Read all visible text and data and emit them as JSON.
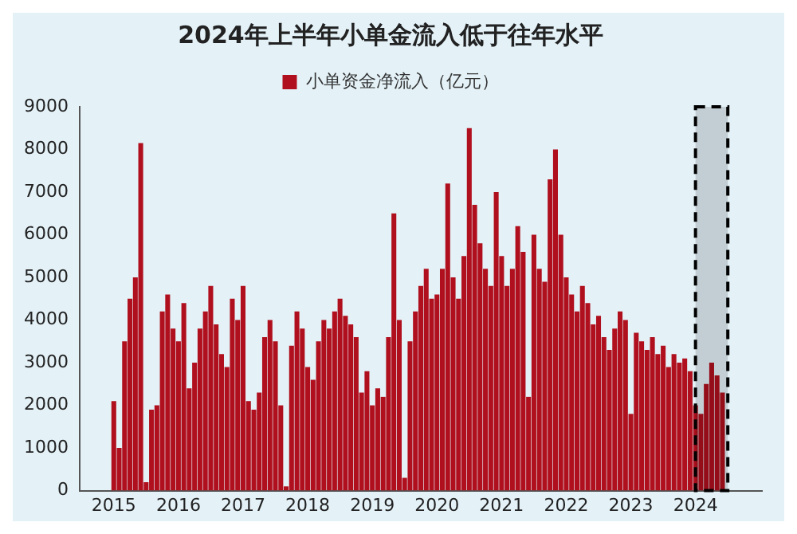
{
  "chart_data": {
    "type": "bar",
    "title": "2024年上半年小单金流入低于往年水平",
    "legend": "top",
    "x": [
      "2015-01",
      "2015-02",
      "2015-03",
      "2015-04",
      "2015-05",
      "2015-06",
      "2015-07",
      "2015-08",
      "2015-09",
      "2015-10",
      "2015-11",
      "2015-12",
      "2016-01",
      "2016-02",
      "2016-03",
      "2016-04",
      "2016-05",
      "2016-06",
      "2016-07",
      "2016-08",
      "2016-09",
      "2016-10",
      "2016-11",
      "2016-12",
      "2017-01",
      "2017-02",
      "2017-03",
      "2017-04",
      "2017-05",
      "2017-06",
      "2017-07",
      "2017-08",
      "2017-09",
      "2017-10",
      "2017-11",
      "2017-12",
      "2018-01",
      "2018-02",
      "2018-03",
      "2018-04",
      "2018-05",
      "2018-06",
      "2018-07",
      "2018-08",
      "2018-09",
      "2018-10",
      "2018-11",
      "2018-12",
      "2019-01",
      "2019-02",
      "2019-03",
      "2019-04",
      "2019-05",
      "2019-06",
      "2019-07",
      "2019-08",
      "2019-09",
      "2019-10",
      "2019-11",
      "2019-12",
      "2020-01",
      "2020-02",
      "2020-03",
      "2020-04",
      "2020-05",
      "2020-06",
      "2020-07",
      "2020-08",
      "2020-09",
      "2020-10",
      "2020-11",
      "2020-12",
      "2021-01",
      "2021-02",
      "2021-03",
      "2021-04",
      "2021-05",
      "2021-06",
      "2021-07",
      "2021-08",
      "2021-09",
      "2021-10",
      "2021-11",
      "2021-12",
      "2022-01",
      "2022-02",
      "2022-03",
      "2022-04",
      "2022-05",
      "2022-06",
      "2022-07",
      "2022-08",
      "2022-09",
      "2022-10",
      "2022-11",
      "2022-12",
      "2023-01",
      "2023-02",
      "2023-03",
      "2023-04",
      "2023-05",
      "2023-06",
      "2023-07",
      "2023-08",
      "2023-09",
      "2023-10",
      "2023-11",
      "2023-12",
      "2024-01",
      "2024-02",
      "2024-03",
      "2024-04",
      "2024-05",
      "2024-06"
    ],
    "series": [
      {
        "name": "小单资金净流入（亿元）",
        "color": "#b0101e",
        "values": [
          2100,
          1000,
          3500,
          4500,
          5000,
          8150,
          200,
          1900,
          2000,
          4200,
          4600,
          3800,
          3500,
          4400,
          2400,
          3000,
          3800,
          4200,
          4800,
          3900,
          3200,
          2900,
          4500,
          4000,
          4800,
          2100,
          1900,
          2300,
          3600,
          4000,
          3500,
          2000,
          100,
          3400,
          4200,
          3800,
          2900,
          2600,
          3500,
          4000,
          3800,
          4200,
          4500,
          4100,
          3900,
          3600,
          2300,
          2800,
          2000,
          2400,
          2200,
          3600,
          6500,
          4000,
          300,
          3500,
          4200,
          4800,
          5200,
          4500,
          4600,
          5200,
          7200,
          5000,
          4500,
          5500,
          8500,
          6700,
          5800,
          5200,
          4800,
          7000,
          5500,
          4800,
          5200,
          6200,
          5600,
          2200,
          6000,
          5200,
          4900,
          7300,
          8000,
          6000,
          5000,
          4600,
          4200,
          4800,
          4400,
          3900,
          4100,
          3600,
          3300,
          3800,
          4200,
          4000,
          1800,
          3700,
          3500,
          3300,
          3600,
          3200,
          3400,
          2900,
          3200,
          3000,
          3100,
          2800,
          2000,
          1800,
          2500,
          3000,
          2700,
          2300
        ]
      }
    ],
    "xlim": [
      "2015-01",
      "2024-07"
    ],
    "xticks": [
      "2015",
      "2016",
      "2017",
      "2018",
      "2019",
      "2020",
      "2021",
      "2022",
      "2023",
      "2024"
    ],
    "ylim": [
      0,
      9000
    ],
    "yticks": [
      0,
      1000,
      2000,
      3000,
      4000,
      5000,
      6000,
      7000,
      8000,
      9000
    ],
    "grid": false,
    "bands": [
      {
        "axis": "x",
        "from": "2024-01",
        "to": "2024-07",
        "color": "#000000"
      }
    ]
  }
}
